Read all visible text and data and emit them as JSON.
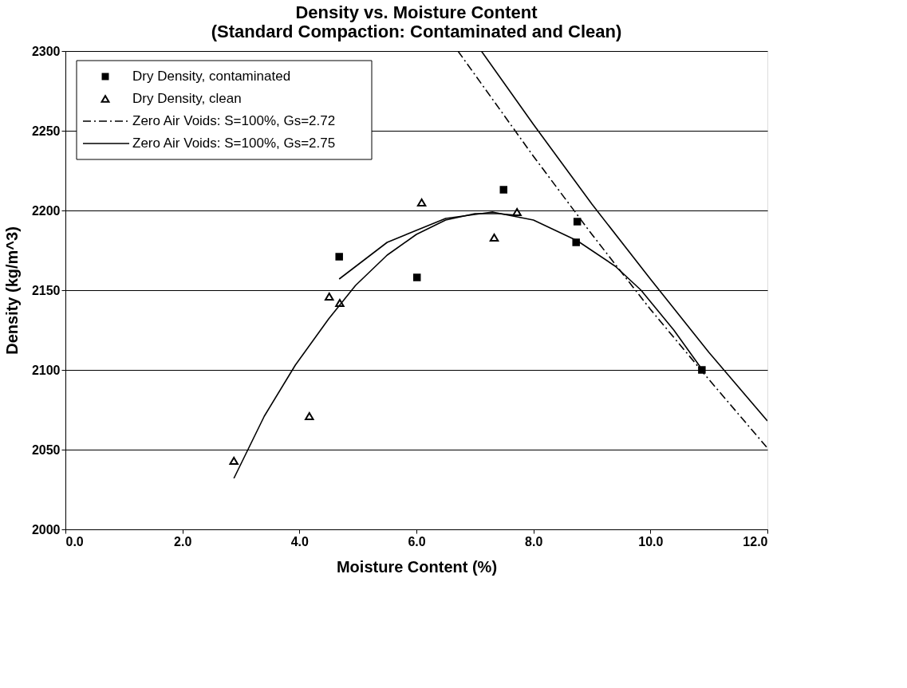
{
  "chart_data": {
    "type": "scatter",
    "title": "Density vs. Moisture Content",
    "subtitle": "(Standard Compaction: Contaminated and Clean)",
    "xlabel": "Moisture Content (%)",
    "ylabel": "Density (kg/m^3)",
    "xlim": [
      0,
      12
    ],
    "ylim": [
      2000,
      2300
    ],
    "xticks": [
      {
        "value": 0,
        "label": "0.0"
      },
      {
        "value": 2,
        "label": "2.0"
      },
      {
        "value": 4,
        "label": "4.0"
      },
      {
        "value": 6,
        "label": "6.0"
      },
      {
        "value": 8,
        "label": "8.0"
      },
      {
        "value": 10,
        "label": "10.0"
      },
      {
        "value": 12,
        "label": "12.0"
      }
    ],
    "yticks": [
      2000,
      2050,
      2100,
      2150,
      2200,
      2250,
      2300
    ],
    "grid": "y",
    "legend": "top left",
    "series": [
      {
        "name": "Dry Density, contaminated",
        "marker": "square",
        "color": "#000000",
        "x": [
          4.68,
          6.01,
          7.49,
          8.75,
          8.73,
          10.88
        ],
        "values": [
          2171,
          2158,
          2213,
          2193,
          2180,
          2100
        ]
      },
      {
        "name": "Dry Density, clean",
        "marker": "triangle",
        "color": "#000000",
        "x": [
          2.88,
          4.17,
          4.51,
          4.69,
          6.09,
          7.33,
          7.72
        ],
        "values": [
          2043,
          2071,
          2146,
          2142,
          2205,
          2183,
          2199
        ]
      },
      {
        "name": "Zero Air Voids: S=100%, Gs=2.72",
        "type": "line",
        "line_style": "dashed",
        "color": "#000000",
        "x": [
          6.71,
          8,
          9,
          10,
          11,
          12
        ],
        "values": [
          2300,
          2234,
          2185,
          2138,
          2094,
          2051
        ]
      },
      {
        "name": "Zero Air Voids: S=100%, Gs=2.75",
        "type": "line",
        "line_style": "solid",
        "color": "#000000",
        "x": [
          7.11,
          8,
          9,
          10,
          11,
          12
        ],
        "values": [
          2300,
          2254,
          2204,
          2157,
          2111,
          2068
        ]
      },
      {
        "type": "line",
        "line_style": "solid",
        "color": "#000000",
        "x": [
          2.88,
          3.4,
          3.93,
          4.5,
          4.96,
          5.5,
          6.0,
          6.5,
          7.0,
          7.4,
          7.72
        ],
        "values": [
          2032,
          2071,
          2103,
          2132,
          2153,
          2172,
          2185,
          2194,
          2198,
          2198,
          2197
        ]
      },
      {
        "type": "line",
        "line_style": "solid",
        "color": "#000000",
        "x": [
          4.68,
          5.5,
          6.5,
          7.3,
          8.0,
          8.75,
          9.4,
          9.84,
          10.4,
          10.85
        ],
        "values": [
          2157,
          2180,
          2195,
          2199,
          2194,
          2181,
          2165,
          2150,
          2125,
          2102
        ]
      }
    ]
  }
}
